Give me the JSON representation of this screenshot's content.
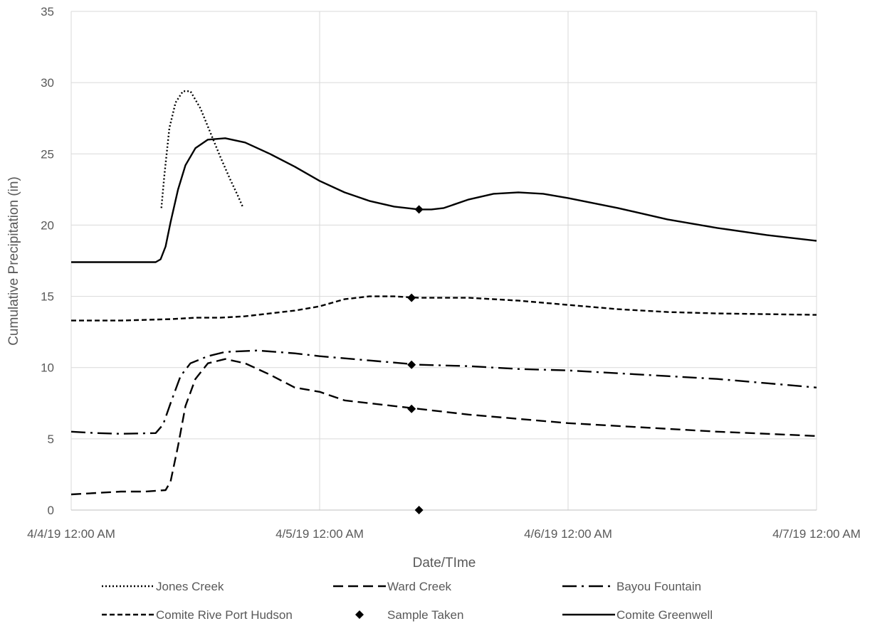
{
  "chart_data": {
    "type": "line",
    "title": "",
    "xlabel": "Date/TIme",
    "ylabel": "Cumulative Precipitation (in)",
    "x_unit": "days since 4/4/19 12:00 AM",
    "xlim": [
      0,
      3
    ],
    "ylim": [
      0,
      35
    ],
    "x_ticks": [
      {
        "x": 0,
        "label": "4/4/19 12:00 AM"
      },
      {
        "x": 1,
        "label": "4/5/19 12:00 AM"
      },
      {
        "x": 2,
        "label": "4/6/19 12:00 AM"
      },
      {
        "x": 3,
        "label": "4/7/19 12:00 AM"
      }
    ],
    "y_ticks": [
      0,
      5,
      10,
      15,
      20,
      25,
      30,
      35
    ],
    "grid": true,
    "legend_position": "bottom",
    "series": [
      {
        "name": "Jones Creek",
        "style": "dotted",
        "color": "#000000",
        "points": [
          [
            0.363,
            21.2
          ],
          [
            0.375,
            23.5
          ],
          [
            0.395,
            26.8
          ],
          [
            0.42,
            28.6
          ],
          [
            0.45,
            29.4
          ],
          [
            0.48,
            29.4
          ],
          [
            0.52,
            28.2
          ],
          [
            0.56,
            26.5
          ],
          [
            0.6,
            24.8
          ],
          [
            0.64,
            23.2
          ],
          [
            0.67,
            22.1
          ],
          [
            0.69,
            21.3
          ]
        ]
      },
      {
        "name": "Ward Creek",
        "style": "dashed",
        "color": "#000000",
        "points": [
          [
            0,
            1.1
          ],
          [
            0.1,
            1.2
          ],
          [
            0.2,
            1.3
          ],
          [
            0.3,
            1.3
          ],
          [
            0.38,
            1.4
          ],
          [
            0.4,
            2.0
          ],
          [
            0.43,
            4.5
          ],
          [
            0.46,
            7.3
          ],
          [
            0.5,
            9.2
          ],
          [
            0.55,
            10.3
          ],
          [
            0.62,
            10.6
          ],
          [
            0.7,
            10.3
          ],
          [
            0.8,
            9.5
          ],
          [
            0.9,
            8.6
          ],
          [
            1.0,
            8.3
          ],
          [
            1.1,
            7.7
          ],
          [
            1.2,
            7.5
          ],
          [
            1.3,
            7.3
          ],
          [
            1.4,
            7.1
          ],
          [
            1.6,
            6.7
          ],
          [
            1.8,
            6.4
          ],
          [
            2.0,
            6.1
          ],
          [
            2.2,
            5.9
          ],
          [
            2.4,
            5.7
          ],
          [
            2.6,
            5.5
          ],
          [
            2.8,
            5.35
          ],
          [
            3.0,
            5.2
          ]
        ]
      },
      {
        "name": "Bayou Fountain",
        "style": "dash-dot",
        "color": "#000000",
        "points": [
          [
            0,
            5.5
          ],
          [
            0.1,
            5.4
          ],
          [
            0.2,
            5.35
          ],
          [
            0.34,
            5.4
          ],
          [
            0.37,
            6.0
          ],
          [
            0.4,
            7.5
          ],
          [
            0.44,
            9.4
          ],
          [
            0.48,
            10.3
          ],
          [
            0.55,
            10.8
          ],
          [
            0.62,
            11.1
          ],
          [
            0.75,
            11.2
          ],
          [
            0.9,
            11.0
          ],
          [
            1.0,
            10.8
          ],
          [
            1.2,
            10.5
          ],
          [
            1.4,
            10.2
          ],
          [
            1.6,
            10.1
          ],
          [
            1.8,
            9.9
          ],
          [
            2.0,
            9.8
          ],
          [
            2.2,
            9.6
          ],
          [
            2.4,
            9.4
          ],
          [
            2.6,
            9.2
          ],
          [
            2.8,
            8.9
          ],
          [
            3.0,
            8.6
          ]
        ]
      },
      {
        "name": "Comite Rive Port Hudson",
        "style": "short-dash",
        "color": "#000000",
        "points": [
          [
            0,
            13.3
          ],
          [
            0.2,
            13.3
          ],
          [
            0.4,
            13.4
          ],
          [
            0.5,
            13.5
          ],
          [
            0.6,
            13.5
          ],
          [
            0.7,
            13.6
          ],
          [
            0.8,
            13.8
          ],
          [
            0.9,
            14.0
          ],
          [
            1.0,
            14.3
          ],
          [
            1.1,
            14.8
          ],
          [
            1.2,
            15.0
          ],
          [
            1.3,
            15.0
          ],
          [
            1.4,
            14.9
          ],
          [
            1.6,
            14.9
          ],
          [
            1.8,
            14.7
          ],
          [
            2.0,
            14.4
          ],
          [
            2.2,
            14.1
          ],
          [
            2.4,
            13.9
          ],
          [
            2.6,
            13.8
          ],
          [
            2.8,
            13.75
          ],
          [
            3.0,
            13.7
          ]
        ]
      },
      {
        "name": "Comite Greenwell",
        "style": "solid",
        "color": "#000000",
        "points": [
          [
            0,
            17.4
          ],
          [
            0.1,
            17.4
          ],
          [
            0.2,
            17.4
          ],
          [
            0.34,
            17.4
          ],
          [
            0.36,
            17.6
          ],
          [
            0.38,
            18.5
          ],
          [
            0.4,
            20.2
          ],
          [
            0.43,
            22.5
          ],
          [
            0.46,
            24.2
          ],
          [
            0.5,
            25.4
          ],
          [
            0.55,
            26.0
          ],
          [
            0.62,
            26.1
          ],
          [
            0.7,
            25.8
          ],
          [
            0.8,
            25.0
          ],
          [
            0.9,
            24.1
          ],
          [
            1.0,
            23.1
          ],
          [
            1.1,
            22.3
          ],
          [
            1.2,
            21.7
          ],
          [
            1.3,
            21.3
          ],
          [
            1.4,
            21.1
          ],
          [
            1.45,
            21.1
          ],
          [
            1.5,
            21.2
          ],
          [
            1.6,
            21.8
          ],
          [
            1.7,
            22.2
          ],
          [
            1.8,
            22.3
          ],
          [
            1.9,
            22.2
          ],
          [
            2.0,
            21.9
          ],
          [
            2.2,
            21.2
          ],
          [
            2.4,
            20.4
          ],
          [
            2.6,
            19.8
          ],
          [
            2.8,
            19.3
          ],
          [
            3.0,
            18.9
          ]
        ]
      }
    ],
    "sample_taken": {
      "name": "Sample Taken",
      "marker": "diamond",
      "color": "#000000",
      "points": [
        [
          1.4,
          21.1
        ],
        [
          1.37,
          14.9
        ],
        [
          1.37,
          10.2
        ],
        [
          1.37,
          7.1
        ],
        [
          1.4,
          0
        ]
      ]
    },
    "legend": [
      {
        "label": "Jones Creek",
        "style": "dotted"
      },
      {
        "label": "Ward Creek",
        "style": "dashed"
      },
      {
        "label": "Bayou Fountain",
        "style": "dash-dot"
      },
      {
        "label": "Comite Rive Port Hudson",
        "style": "short-dash"
      },
      {
        "label": "Sample Taken",
        "style": "marker"
      },
      {
        "label": "Comite Greenwell",
        "style": "solid"
      }
    ]
  }
}
